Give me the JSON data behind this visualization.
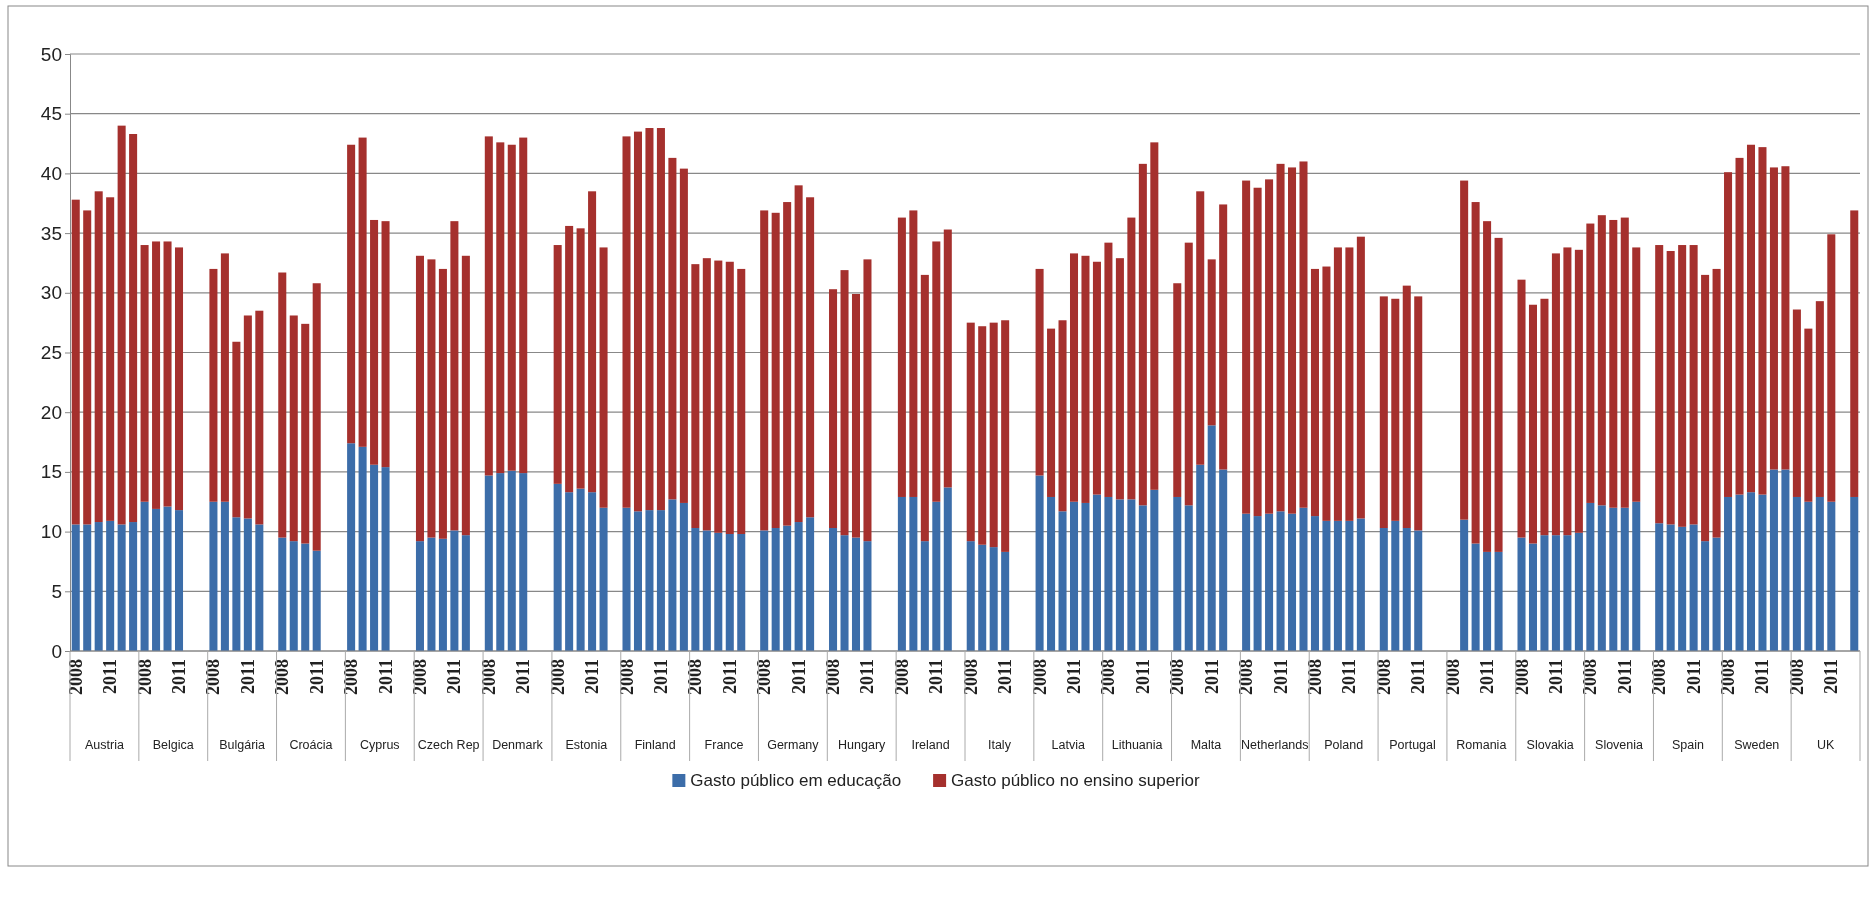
{
  "chart_data": {
    "type": "bar",
    "stacked": true,
    "categories": [
      "2008",
      null,
      null,
      "2011",
      null,
      null,
      "2008",
      null,
      null,
      "2011",
      null,
      null,
      "2008",
      null,
      null,
      "2011",
      null,
      null,
      "2008",
      null,
      null,
      "2011",
      null,
      null,
      "2008",
      null,
      null,
      "2011",
      null,
      null,
      "2008",
      null,
      null,
      "2011",
      null,
      null,
      "2008",
      null,
      null,
      "2011",
      null,
      null,
      "2008",
      null,
      null,
      "2011",
      null,
      null,
      "2008",
      null,
      null,
      "2011",
      null,
      null,
      "2008",
      null,
      null,
      "2011",
      null,
      null,
      "2008",
      null,
      null,
      "2011",
      null,
      null,
      "2008",
      null,
      null,
      "2011",
      null,
      null,
      "2008",
      null,
      null,
      "2011",
      null,
      null,
      "2008",
      null,
      null,
      "2011",
      null,
      null,
      "2008",
      null,
      null,
      "2011",
      null,
      null,
      "2008",
      null,
      null,
      "2011",
      null,
      null,
      "2008",
      null,
      null,
      "2011",
      null,
      null,
      "2008",
      null,
      null,
      "2011",
      null,
      null,
      "2008",
      null,
      null,
      "2011",
      null,
      null,
      "2008",
      null,
      null,
      "2011",
      null,
      null,
      "2008",
      null,
      null,
      "2011",
      null,
      null,
      "2008",
      null,
      null,
      "2011",
      null,
      null,
      "2008",
      null,
      null,
      "2011",
      null,
      null,
      "2008",
      null,
      null,
      "2011",
      null,
      null,
      "2008",
      null,
      null,
      "2011",
      null,
      null,
      "2008",
      null,
      null,
      "2011",
      null,
      null
    ],
    "series": [
      {
        "name": "Gasto público em educação",
        "color": "#3c6da9",
        "values": [
          10.6,
          10.6,
          10.8,
          10.9,
          10.6,
          10.8,
          12.5,
          11.9,
          12.1,
          11.8,
          null,
          null,
          12.5,
          12.5,
          11.2,
          11.1,
          10.6,
          null,
          9.5,
          9.2,
          9.0,
          8.4,
          null,
          null,
          17.4,
          17.1,
          15.6,
          15.4,
          null,
          null,
          9.2,
          9.5,
          9.4,
          10.1,
          9.7,
          null,
          14.7,
          14.9,
          15.1,
          14.9,
          null,
          null,
          14.0,
          13.3,
          13.6,
          13.3,
          12.0,
          null,
          12.0,
          11.7,
          11.8,
          11.8,
          12.7,
          12.4,
          10.3,
          10.1,
          9.9,
          9.8,
          9.8,
          null,
          10.1,
          10.3,
          10.5,
          10.8,
          11.2,
          null,
          10.3,
          9.7,
          9.5,
          9.2,
          null,
          null,
          12.9,
          12.9,
          9.2,
          12.5,
          13.7,
          null,
          9.2,
          8.9,
          8.7,
          8.3,
          null,
          null,
          14.7,
          12.9,
          11.7,
          12.5,
          12.4,
          13.1,
          12.9,
          12.7,
          12.7,
          12.2,
          13.5,
          null,
          12.9,
          12.2,
          15.6,
          18.9,
          15.2,
          null,
          11.5,
          11.3,
          11.5,
          11.7,
          11.5,
          12.0,
          11.3,
          10.9,
          10.9,
          10.9,
          11.1,
          null,
          10.3,
          10.9,
          10.3,
          10.1,
          null,
          null,
          null,
          11.0,
          9.0,
          8.3,
          8.3,
          null,
          9.5,
          9.0,
          9.7,
          9.7,
          9.7,
          9.9,
          12.4,
          12.2,
          12.0,
          12.0,
          12.5,
          null,
          10.7,
          10.6,
          10.4,
          10.6,
          9.2,
          9.5,
          12.9,
          13.1,
          13.3,
          13.1,
          15.2,
          15.2,
          12.9,
          12.5,
          12.9,
          12.5,
          null,
          12.9
        ]
      },
      {
        "name": "Gasto público no ensino superior",
        "color": "#a5302d",
        "values": [
          27.2,
          26.3,
          27.7,
          27.1,
          33.4,
          32.5,
          21.5,
          22.4,
          22.2,
          22.0,
          null,
          null,
          19.5,
          20.8,
          14.7,
          17.0,
          17.9,
          null,
          22.2,
          18.9,
          18.4,
          22.4,
          null,
          null,
          25.0,
          25.9,
          20.5,
          20.6,
          null,
          null,
          23.9,
          23.3,
          22.6,
          25.9,
          23.4,
          null,
          28.4,
          27.7,
          27.3,
          28.1,
          null,
          null,
          20.0,
          22.3,
          21.8,
          25.2,
          21.8,
          null,
          31.1,
          31.8,
          32.0,
          32.0,
          28.6,
          28.0,
          22.1,
          22.8,
          22.8,
          22.8,
          22.2,
          null,
          26.8,
          26.4,
          27.1,
          28.2,
          26.8,
          null,
          20.0,
          22.2,
          20.4,
          23.6,
          null,
          null,
          23.4,
          24.0,
          22.3,
          21.8,
          21.6,
          null,
          18.3,
          18.3,
          18.8,
          19.4,
          null,
          null,
          17.3,
          14.1,
          16.0,
          20.8,
          20.7,
          19.5,
          21.3,
          20.2,
          23.6,
          28.6,
          29.1,
          null,
          17.9,
          22.0,
          22.9,
          13.9,
          22.2,
          null,
          27.9,
          27.5,
          28.0,
          29.1,
          29.0,
          29.0,
          20.7,
          21.3,
          22.9,
          22.9,
          23.6,
          null,
          19.4,
          18.6,
          20.3,
          19.6,
          null,
          null,
          null,
          28.4,
          28.6,
          27.7,
          26.3,
          null,
          21.6,
          20.0,
          19.8,
          23.6,
          24.1,
          23.7,
          23.4,
          24.3,
          24.1,
          24.3,
          21.3,
          null,
          23.3,
          22.9,
          23.6,
          23.4,
          22.3,
          22.5,
          27.2,
          28.2,
          29.1,
          29.1,
          25.3,
          25.4,
          15.7,
          14.5,
          16.4,
          22.4,
          null,
          24.0
        ]
      }
    ],
    "annotations": [
      "Austria",
      "Belgica",
      "Bulgária",
      "Croácia",
      "Cyprus",
      "Czech Rep",
      "Denmark",
      "Estonia",
      "Finland",
      "France",
      "Germany",
      "Hungary",
      "Ireland",
      "Italy",
      "Latvia",
      "Lithuania",
      "Malta",
      "Netherlands",
      "Poland",
      "Portugal",
      "Romania",
      "Slovakia",
      "Slovenia",
      "Spain",
      "Sweden",
      "UK"
    ],
    "ylim": [
      0,
      50
    ],
    "yticks": [
      0,
      5,
      10,
      15,
      20,
      25,
      30,
      35,
      40,
      45,
      50
    ],
    "grid": "y",
    "legend": "bottom"
  }
}
